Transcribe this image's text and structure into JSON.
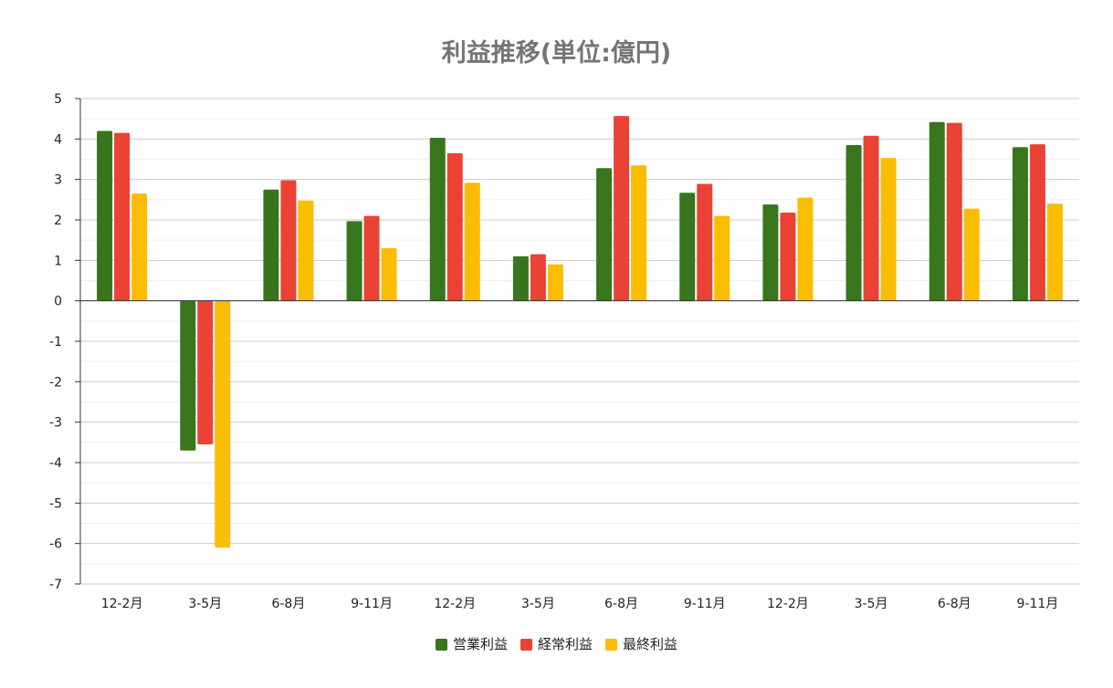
{
  "chart_data": {
    "type": "bar",
    "title": "利益推移(単位:億円)",
    "xlabel": "",
    "ylabel": "",
    "categories": [
      "12-2月",
      "3-5月",
      "6-8月",
      "9-11月",
      "12-2月",
      "3-5月",
      "6-8月",
      "9-11月",
      "12-2月",
      "3-5月",
      "6-8月",
      "9-11月"
    ],
    "series": [
      {
        "name": "営業利益",
        "color": "#38761d",
        "values": [
          4.2,
          -3.7,
          2.75,
          1.97,
          4.03,
          1.1,
          3.28,
          2.67,
          2.38,
          3.85,
          4.42,
          3.8
        ]
      },
      {
        "name": "経常利益",
        "color": "#ea4335",
        "values": [
          4.15,
          -3.55,
          2.98,
          2.1,
          3.65,
          1.15,
          4.57,
          2.89,
          2.18,
          4.08,
          4.4,
          3.87
        ]
      },
      {
        "name": "最終利益",
        "color": "#fbbc04",
        "values": [
          2.65,
          -6.1,
          2.48,
          1.3,
          2.92,
          0.9,
          3.35,
          2.1,
          2.55,
          3.53,
          2.28,
          2.4
        ]
      }
    ],
    "ylim": [
      -7,
      5
    ],
    "yticks": [
      5,
      4,
      3,
      2,
      1,
      0,
      -1,
      -2,
      -3,
      -4,
      -5,
      -6,
      -7
    ],
    "grid": true,
    "legend": "bottom"
  }
}
